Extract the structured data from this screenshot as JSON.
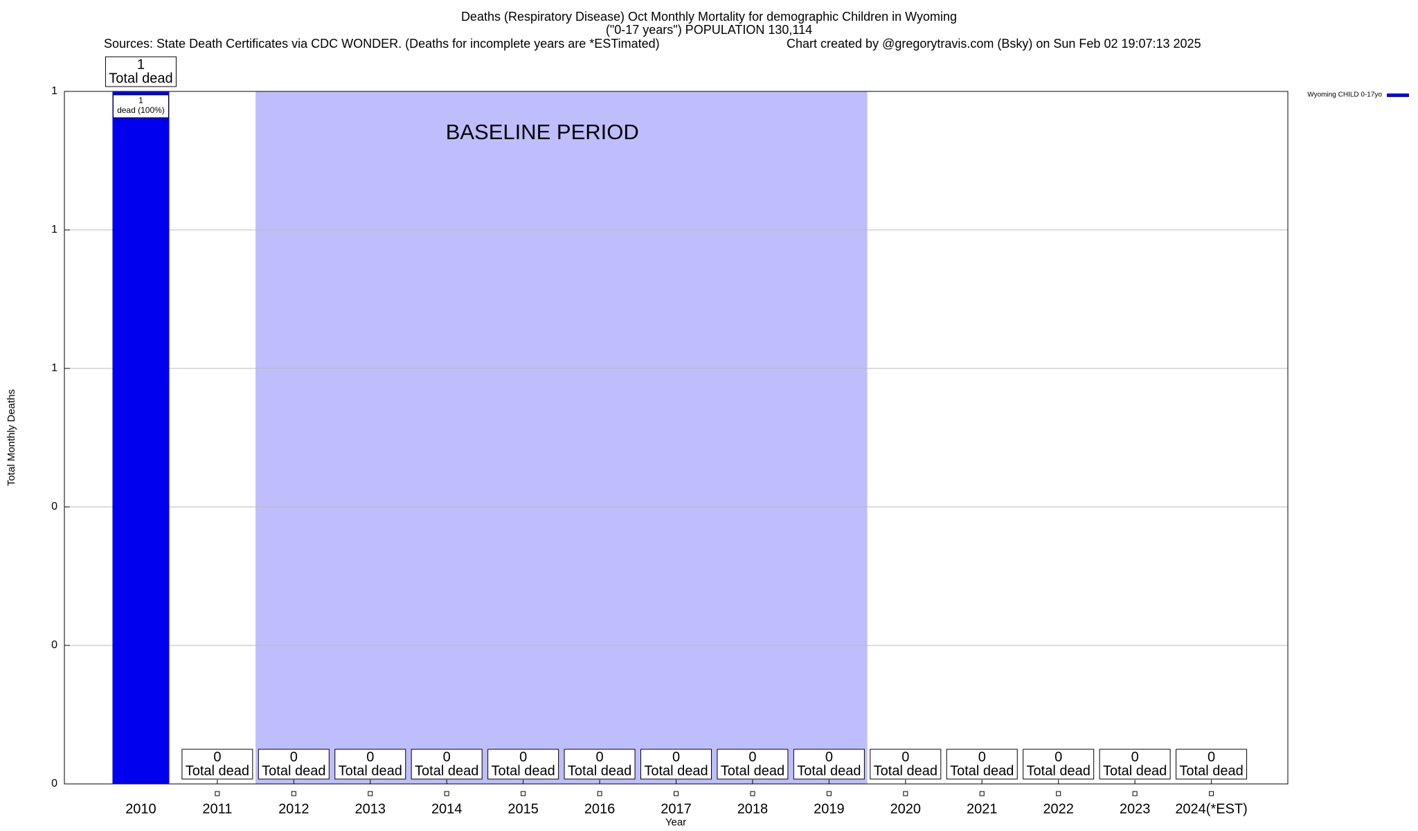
{
  "chart_data": {
    "type": "bar",
    "title": "Deaths (Respiratory Disease) Oct Monthly Mortality for demographic Children in Wyoming",
    "subtitle": "(\"0-17 years\") POPULATION 130,114",
    "source": "Sources: State Death Certificates via CDC WONDER. (Deaths for incomplete years are *ESTimated)",
    "credit": "Chart created by @gregorytravis.com (Bsky) on Sun Feb 02 19:07:13 2025",
    "x_label": "Year",
    "y_label": "Total Monthly Deaths",
    "categories": [
      "2010",
      "2011",
      "2012",
      "2013",
      "2014",
      "2015",
      "2016",
      "2017",
      "2018",
      "2019",
      "2020",
      "2021",
      "2022",
      "2023",
      "2024(*EST)"
    ],
    "series": [
      {
        "name": "Wyoming CHILD 0-17yo",
        "color": "#0000ee",
        "values": [
          1,
          0,
          0,
          0,
          0,
          0,
          0,
          0,
          0,
          0,
          0,
          0,
          0,
          0,
          0
        ]
      }
    ],
    "total_label": "Total dead",
    "inner_label": {
      "index": 0,
      "lines": [
        "1",
        "dead (100%)"
      ]
    },
    "baseline": {
      "label": "BASELINE PERIOD",
      "start": "2012",
      "end": "2019",
      "color": "#bebefc"
    },
    "ylim": [
      0,
      1
    ],
    "yticks": [
      {
        "value": 0,
        "label": "0"
      },
      {
        "value": 0.2,
        "label": "0"
      },
      {
        "value": 0.4,
        "label": "0"
      },
      {
        "value": 0.6,
        "label": "1"
      },
      {
        "value": 0.8,
        "label": "1"
      },
      {
        "value": 1,
        "label": "1"
      }
    ],
    "grid": true,
    "legend": "top-right"
  }
}
